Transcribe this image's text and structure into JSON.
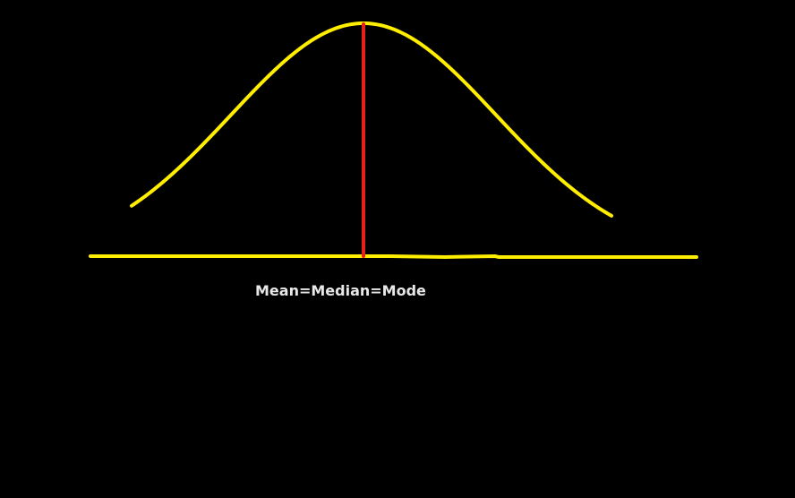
{
  "diagram": {
    "label": "Mean=Median=Mode",
    "colors": {
      "background": "#000000",
      "curve": "#ffee00",
      "baseline": "#ffee00",
      "center_line": "#e8201a",
      "label": "#e8e8e8"
    }
  }
}
